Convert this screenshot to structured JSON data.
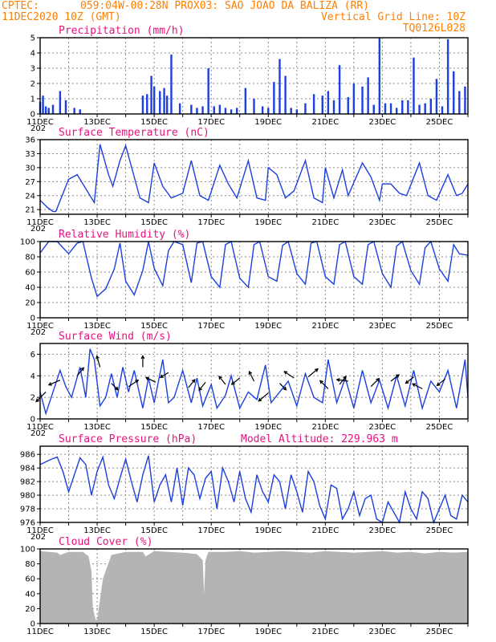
{
  "header": {
    "source": "CPTEC:",
    "location": "059:04W-00:28N  PROX03: SAO JOAO DA BALIZA (RR)",
    "init_time": "11DEC2020 10Z (GMT)",
    "grid_note": "Vertical Grid Line: 10Z",
    "model": "TQ0126L028",
    "model_altitude": "Model Altitude: 229.963 m"
  },
  "colors": {
    "header": "#ff7f00",
    "panel_title": "#e8117f",
    "series": "#1c3fe0",
    "bars": "#1c3fe0",
    "cloud": "#b4b4b4",
    "grid": "#8a8a8a"
  },
  "x_axis": {
    "start_day": 11,
    "end_day": 26,
    "tick_labels": [
      "11DEC",
      "13DEC",
      "15DEC",
      "17DEC",
      "19DEC",
      "21DEC",
      "23DEC",
      "25DEC"
    ],
    "year_fragment": "202"
  },
  "chart_data": [
    {
      "type": "bar",
      "title": "Precipitation (mm/h)",
      "ylim": [
        0,
        5
      ],
      "y_ticks": [
        "0",
        "1",
        "2",
        "3",
        "4",
        "5"
      ],
      "x": [
        11.0,
        11.1,
        11.2,
        11.3,
        11.45,
        11.7,
        11.9,
        12.2,
        12.4,
        14.6,
        14.75,
        14.9,
        15.0,
        15.2,
        15.35,
        15.45,
        15.6,
        15.9,
        16.3,
        16.5,
        16.7,
        16.9,
        17.1,
        17.3,
        17.5,
        17.7,
        17.9,
        18.2,
        18.5,
        18.8,
        19.0,
        19.2,
        19.4,
        19.6,
        19.8,
        20.0,
        20.3,
        20.6,
        20.9,
        21.1,
        21.3,
        21.5,
        21.8,
        22.0,
        22.3,
        22.5,
        22.7,
        22.9,
        23.1,
        23.3,
        23.5,
        23.7,
        23.9,
        24.1,
        24.3,
        24.5,
        24.7,
        24.9,
        25.1,
        25.3,
        25.5,
        25.7,
        25.9
      ],
      "values": [
        0.8,
        1.2,
        0.5,
        0.4,
        0.6,
        1.5,
        0.9,
        0.4,
        0.3,
        1.2,
        1.3,
        2.5,
        1.8,
        1.5,
        1.7,
        1.2,
        3.9,
        0.7,
        0.6,
        0.4,
        0.5,
        3.0,
        0.5,
        0.6,
        0.4,
        0.3,
        0.4,
        1.7,
        1.0,
        0.5,
        0.4,
        2.1,
        3.6,
        2.5,
        0.4,
        0.3,
        0.7,
        1.3,
        1.2,
        1.5,
        0.9,
        3.2,
        1.1,
        2.0,
        1.8,
        2.4,
        0.6,
        5.0,
        0.7,
        0.7,
        0.4,
        0.9,
        0.9,
        3.7,
        0.6,
        0.7,
        1.0,
        2.3,
        0.5,
        4.9,
        2.8,
        1.5,
        1.8
      ]
    },
    {
      "type": "line",
      "title": "Surface Temperature (nC)",
      "ylim": [
        20,
        36
      ],
      "y_ticks": [
        "21",
        "24",
        "27",
        "30",
        "33",
        "36"
      ],
      "x": [
        11.0,
        11.25,
        11.45,
        11.55,
        12.0,
        12.3,
        12.5,
        12.9,
        13.1,
        13.4,
        13.55,
        13.8,
        14.0,
        14.3,
        14.5,
        14.8,
        15.0,
        15.3,
        15.6,
        16.0,
        16.3,
        16.6,
        16.9,
        17.3,
        17.6,
        17.9,
        18.3,
        18.6,
        18.9,
        19.0,
        19.3,
        19.6,
        19.9,
        20.3,
        20.6,
        20.9,
        21.0,
        21.3,
        21.6,
        21.8,
        22.3,
        22.6,
        22.9,
        23.0,
        23.3,
        23.6,
        23.85,
        24.3,
        24.6,
        24.9,
        25.3,
        25.6,
        25.8,
        26.0
      ],
      "values": [
        23,
        21.5,
        20.6,
        20.6,
        27.5,
        28.5,
        26.5,
        22.5,
        35.0,
        28.5,
        26.0,
        31.5,
        34.7,
        28.0,
        23.5,
        22.5,
        31.0,
        26.0,
        23.5,
        24.5,
        31.5,
        24.0,
        23.0,
        30.5,
        26.5,
        23.5,
        31.5,
        23.5,
        23.0,
        30.0,
        28.5,
        23.5,
        25.0,
        31.5,
        23.5,
        22.5,
        30.0,
        23.5,
        29.5,
        24.0,
        31.0,
        28.0,
        23.0,
        26.5,
        26.5,
        24.5,
        24.0,
        31.0,
        24.0,
        23.0,
        28.5,
        24.0,
        24.5,
        26.5
      ]
    },
    {
      "type": "line",
      "title": "Relative Humidity (%)",
      "ylim": [
        0,
        100
      ],
      "y_ticks": [
        "0",
        "20",
        "40",
        "60",
        "80",
        "100"
      ],
      "x": [
        11.0,
        11.3,
        11.6,
        12.0,
        12.3,
        12.5,
        12.8,
        13.0,
        13.3,
        13.6,
        13.8,
        14.0,
        14.3,
        14.6,
        14.8,
        15.0,
        15.3,
        15.5,
        15.7,
        16.0,
        16.3,
        16.5,
        16.7,
        17.0,
        17.3,
        17.5,
        17.7,
        18.0,
        18.3,
        18.5,
        18.7,
        19.0,
        19.3,
        19.5,
        19.7,
        20.0,
        20.3,
        20.5,
        20.7,
        21.0,
        21.3,
        21.5,
        21.7,
        22.0,
        22.3,
        22.5,
        22.7,
        23.0,
        23.3,
        23.5,
        23.7,
        24.0,
        24.3,
        24.5,
        24.7,
        25.0,
        25.3,
        25.5,
        25.7,
        26.0
      ],
      "values": [
        85,
        100,
        100,
        84,
        98,
        100,
        52,
        28,
        38,
        64,
        98,
        48,
        30,
        62,
        100,
        65,
        42,
        88,
        100,
        96,
        46,
        98,
        100,
        54,
        40,
        96,
        100,
        52,
        40,
        96,
        100,
        54,
        48,
        95,
        100,
        58,
        44,
        98,
        100,
        54,
        44,
        96,
        100,
        54,
        44,
        96,
        100,
        58,
        40,
        94,
        100,
        62,
        44,
        92,
        100,
        64,
        48,
        96,
        84,
        82
      ]
    },
    {
      "type": "line",
      "title": "Surface Wind (m/s)",
      "ylim": [
        0,
        7
      ],
      "y_ticks": [
        "0",
        "2",
        "4",
        "6"
      ],
      "x": [
        11.0,
        11.2,
        11.45,
        11.7,
        11.9,
        12.1,
        12.4,
        12.6,
        12.75,
        12.9,
        13.1,
        13.3,
        13.5,
        13.7,
        13.9,
        14.1,
        14.3,
        14.6,
        14.8,
        15.0,
        15.3,
        15.5,
        15.7,
        16.0,
        16.3,
        16.5,
        16.7,
        17.0,
        17.2,
        17.5,
        17.7,
        18.0,
        18.3,
        18.6,
        18.9,
        19.1,
        19.4,
        19.7,
        20.0,
        20.3,
        20.6,
        20.9,
        21.1,
        21.4,
        21.7,
        22.0,
        22.3,
        22.6,
        22.9,
        23.2,
        23.5,
        23.8,
        24.1,
        24.4,
        24.7,
        25.0,
        25.3,
        25.6,
        25.9,
        26.0
      ],
      "values": [
        2.5,
        0.5,
        2.5,
        4.5,
        3.0,
        2.0,
        4.8,
        2.0,
        6.5,
        5.5,
        1.2,
        2.0,
        4.2,
        2.0,
        4.8,
        2.5,
        4.5,
        1.0,
        3.8,
        1.5,
        5.5,
        1.5,
        2.0,
        4.5,
        1.5,
        3.8,
        1.2,
        3.2,
        1.0,
        2.2,
        4.0,
        1.0,
        2.5,
        1.8,
        5.0,
        1.5,
        2.5,
        3.5,
        1.2,
        4.2,
        2.0,
        1.5,
        5.5,
        1.5,
        3.8,
        1.0,
        4.5,
        1.5,
        3.6,
        1.0,
        4.0,
        1.2,
        4.5,
        1.0,
        3.5,
        2.5,
        4.5,
        1.0,
        5.5,
        2.0
      ],
      "arrows_shown": true
    },
    {
      "type": "line",
      "title": "Surface Pressure (hPa)",
      "ylim": [
        976,
        987.2
      ],
      "y_ticks": [
        "976",
        "978",
        "980",
        "982",
        "984",
        "986"
      ],
      "x": [
        11.0,
        11.2,
        11.4,
        11.6,
        11.8,
        12.0,
        12.2,
        12.4,
        12.6,
        12.8,
        13.0,
        13.2,
        13.4,
        13.6,
        13.8,
        14.0,
        14.2,
        14.4,
        14.6,
        14.8,
        15.0,
        15.2,
        15.4,
        15.6,
        15.8,
        16.0,
        16.2,
        16.4,
        16.6,
        16.8,
        17.0,
        17.2,
        17.4,
        17.6,
        17.8,
        18.0,
        18.2,
        18.4,
        18.6,
        18.8,
        19.0,
        19.2,
        19.4,
        19.6,
        19.8,
        20.0,
        20.2,
        20.4,
        20.6,
        20.8,
        21.0,
        21.2,
        21.4,
        21.6,
        21.8,
        22.0,
        22.2,
        22.4,
        22.6,
        22.8,
        23.0,
        23.2,
        23.4,
        23.6,
        23.8,
        24.0,
        24.2,
        24.4,
        24.6,
        24.8,
        25.0,
        25.2,
        25.4,
        25.6,
        25.8,
        26.0
      ],
      "values": [
        984.5,
        984.9,
        985.3,
        985.6,
        983.5,
        980.5,
        983.0,
        985.5,
        984.5,
        980.0,
        983.5,
        985.6,
        981.5,
        979.5,
        982.5,
        985.3,
        982.0,
        979.0,
        983.0,
        985.8,
        979.0,
        981.5,
        983.0,
        979.0,
        984.0,
        978.5,
        984.0,
        983.0,
        979.5,
        982.5,
        983.5,
        978.0,
        984.0,
        982.0,
        979.0,
        983.5,
        979.5,
        977.5,
        983.0,
        980.5,
        979.0,
        983.0,
        982.0,
        978.0,
        983.0,
        980.5,
        977.5,
        983.5,
        982.0,
        978.5,
        976.5,
        981.5,
        981.0,
        976.5,
        978.0,
        980.5,
        977.0,
        979.5,
        980.0,
        976.5,
        975.5,
        979.0,
        977.5,
        976.0,
        980.5,
        978.0,
        976.5,
        980.5,
        979.5,
        976.0,
        978.0,
        980.0,
        977.0,
        976.5,
        980.0,
        979.0
      ]
    },
    {
      "type": "area",
      "title": "Cloud Cover (%)",
      "ylim": [
        0,
        100
      ],
      "y_ticks": [
        "0",
        "20",
        "40",
        "60",
        "80",
        "100"
      ],
      "x": [
        11.0,
        11.6,
        11.7,
        12.0,
        12.5,
        12.7,
        12.8,
        12.85,
        12.95,
        13.0,
        13.2,
        13.5,
        14.0,
        14.6,
        14.7,
        15.0,
        15.5,
        16.0,
        16.5,
        16.7,
        16.75,
        16.8,
        16.9,
        17.5,
        18.0,
        18.5,
        19.0,
        19.5,
        20.0,
        20.5,
        21.0,
        21.5,
        22.0,
        22.5,
        23.0,
        23.5,
        24.0,
        24.5,
        25.0,
        25.5,
        26.0
      ],
      "values": [
        97,
        95,
        92,
        96,
        96,
        90,
        70,
        20,
        5,
        5,
        60,
        92,
        96,
        96,
        90,
        97,
        96,
        95,
        93,
        85,
        40,
        85,
        96,
        96,
        97,
        95,
        96,
        97,
        96,
        95,
        97,
        96,
        95,
        96,
        97,
        95,
        96,
        94,
        96,
        95,
        96
      ]
    }
  ]
}
